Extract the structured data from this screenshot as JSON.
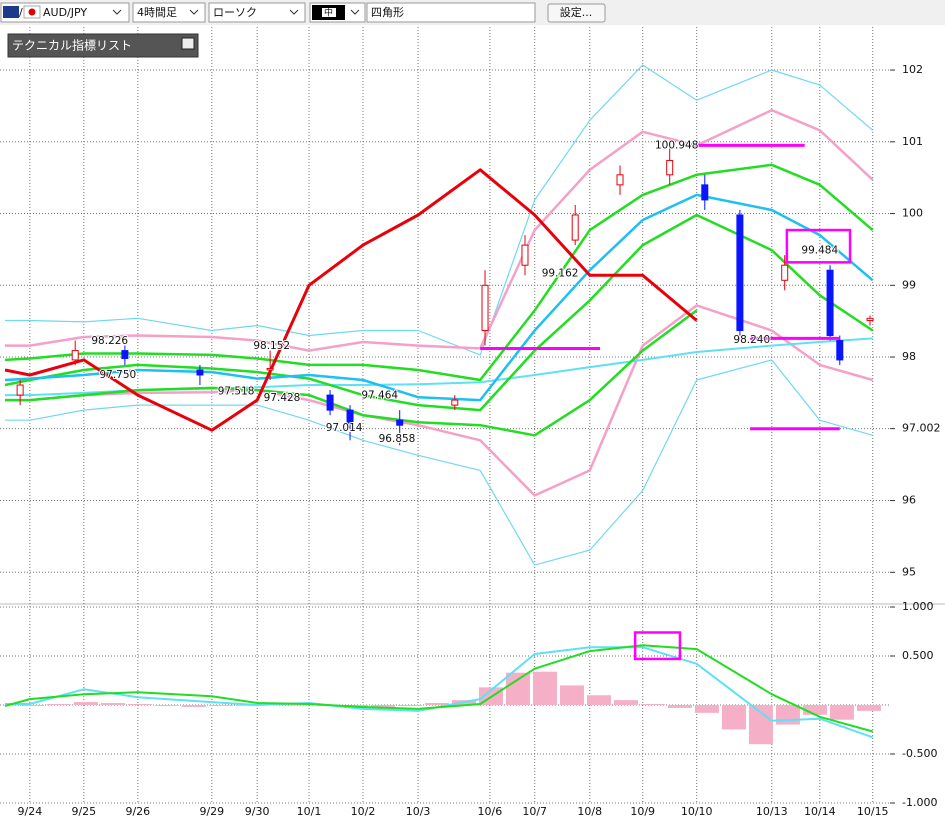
{
  "toolbar": {
    "pair": "AUD/JPY",
    "timeframe": "4時間足",
    "chart_style": "ローソク",
    "line_width": "中",
    "drawing_tool": "四角形",
    "settings": "設定..."
  },
  "indicator_panel": {
    "title": "テクニカル指標リスト"
  },
  "chart_data": [
    {
      "type": "candlestick",
      "xlim": [
        0,
        16.39
      ],
      "xticks": [
        {
          "value": 0.46,
          "label": "9/24"
        },
        {
          "value": 1.46,
          "label": "9/25"
        },
        {
          "value": 2.46,
          "label": "9/26"
        },
        {
          "value": 3.83,
          "label": "9/29"
        },
        {
          "value": 4.67,
          "label": "9/30"
        },
        {
          "value": 5.63,
          "label": "10/1"
        },
        {
          "value": 6.63,
          "label": "10/2"
        },
        {
          "value": 7.65,
          "label": "10/3"
        },
        {
          "value": 8.98,
          "label": "10/6"
        },
        {
          "value": 9.81,
          "label": "10/7"
        },
        {
          "value": 10.83,
          "label": "10/8"
        },
        {
          "value": 11.81,
          "label": "10/9"
        },
        {
          "value": 12.81,
          "label": "10/10"
        },
        {
          "value": 14.2,
          "label": "10/13"
        },
        {
          "value": 15.09,
          "label": "10/14"
        },
        {
          "value": 16.07,
          "label": "10/15"
        }
      ],
      "ylim": [
        94.6,
        102.6
      ],
      "yticks": [
        95,
        96,
        97.002,
        98,
        99,
        100,
        101,
        102
      ],
      "grid": true,
      "up_color": "#e8000b",
      "down_color": "#0a14ff",
      "candles": {
        "x": [
          0.28,
          1.3,
          2.22,
          3.61,
          4.91,
          6.02,
          6.39,
          7.31,
          8.33,
          8.89,
          9.63,
          10.56,
          11.39,
          12.31,
          12.96,
          13.61,
          14.44,
          15.28,
          15.46,
          16.02
        ],
        "open": [
          97.47,
          97.96,
          98.09,
          97.82,
          97.82,
          97.47,
          97.26,
          97.12,
          97.33,
          98.37,
          99.28,
          99.63,
          100.4,
          100.54,
          100.4,
          99.98,
          99.07,
          99.21,
          98.23,
          98.51
        ],
        "high": [
          97.68,
          98.23,
          98.16,
          97.89,
          98.09,
          97.54,
          97.33,
          97.26,
          97.47,
          99.21,
          99.7,
          100.12,
          100.67,
          101.02,
          100.54,
          100.05,
          99.42,
          99.28,
          98.3,
          98.58
        ],
        "low": [
          97.33,
          97.89,
          97.89,
          97.61,
          97.68,
          97.19,
          96.84,
          96.77,
          97.26,
          98.16,
          99.14,
          99.56,
          100.26,
          100.4,
          100.05,
          98.3,
          98.93,
          98.23,
          97.89,
          98.44
        ],
        "close": [
          97.61,
          98.09,
          97.98,
          97.75,
          97.84,
          97.26,
          97.05,
          97.05,
          97.4,
          99.0,
          99.56,
          99.98,
          100.54,
          100.74,
          100.19,
          98.37,
          99.28,
          98.3,
          97.96,
          98.54
        ]
      },
      "x": [
        0,
        0.46,
        1.46,
        2.46,
        3.83,
        4.67,
        5.63,
        6.63,
        7.65,
        8.8,
        9.81,
        10.83,
        11.81,
        12.81,
        14.2,
        15.09,
        16.07
      ],
      "series": [
        {
          "color": "#70d8f0",
          "width": 1.2,
          "values": [
            98.51,
            98.51,
            98.49,
            98.54,
            98.37,
            98.44,
            98.3,
            98.37,
            98.37,
            98.03,
            100.19,
            101.3,
            102.07,
            101.58,
            102.0,
            101.79,
            101.16
          ]
        },
        {
          "color": "#70d8f0",
          "width": 1.2,
          "values": [
            97.12,
            97.12,
            97.26,
            97.33,
            97.33,
            97.33,
            97.12,
            96.84,
            96.63,
            96.42,
            95.1,
            95.31,
            96.14,
            97.68,
            97.96,
            97.12,
            96.91
          ]
        },
        {
          "color": "#f5a0c8",
          "width": 2.5,
          "values": [
            98.16,
            98.16,
            98.28,
            98.3,
            98.28,
            98.23,
            98.09,
            98.21,
            98.16,
            98.12,
            99.77,
            100.61,
            101.14,
            100.95,
            101.44,
            101.16,
            100.47
          ]
        },
        {
          "color": "#f5a0c8",
          "width": 2.5,
          "values": [
            97.4,
            97.4,
            97.47,
            97.5,
            97.51,
            97.54,
            97.4,
            97.19,
            97.05,
            96.84,
            96.07,
            96.42,
            98.16,
            98.72,
            98.37,
            97.89,
            97.68
          ]
        },
        {
          "color": "#5ee0f5",
          "width": 2,
          "values": [
            97.47,
            97.47,
            97.5,
            97.54,
            97.56,
            97.58,
            97.61,
            97.61,
            97.62,
            97.65,
            97.75,
            97.86,
            97.96,
            98.07,
            98.16,
            98.21,
            98.26
          ]
        },
        {
          "color": "#22dd22",
          "width": 2.5,
          "values": [
            97.96,
            97.98,
            98.05,
            98.05,
            98.03,
            97.98,
            97.89,
            97.89,
            97.82,
            97.68,
            98.65,
            99.77,
            100.26,
            100.54,
            100.68,
            100.4,
            99.77
          ]
        },
        {
          "color": "#22dd22",
          "width": 2.5,
          "values": [
            97.61,
            97.68,
            97.82,
            97.89,
            97.84,
            97.79,
            97.7,
            97.47,
            97.33,
            97.26,
            98.09,
            98.79,
            99.56,
            99.98,
            99.49,
            98.86,
            98.37
          ]
        },
        {
          "color": "#22dd22",
          "width": 2.5,
          "values": [
            97.4,
            97.4,
            97.47,
            97.54,
            97.57,
            97.54,
            97.47,
            97.19,
            97.09,
            97.05,
            96.91,
            97.4,
            98.09,
            98.65,
            null,
            null,
            null
          ]
        },
        {
          "color": "#1ec0f0",
          "width": 2.5,
          "values": [
            97.68,
            97.7,
            97.75,
            97.82,
            97.79,
            97.7,
            97.75,
            97.68,
            97.44,
            97.4,
            98.37,
            99.21,
            99.91,
            100.26,
            100.05,
            99.7,
            99.07
          ]
        },
        {
          "color": "#e8000b",
          "width": 3,
          "values": [
            97.82,
            97.75,
            97.96,
            97.47,
            96.98,
            97.4,
            99.0,
            99.56,
            99.98,
            100.61,
            99.98,
            99.14,
            99.14,
            98.51,
            null,
            null,
            null
          ]
        }
      ],
      "annotations": [
        {
          "x": 1.94,
          "value": 98.226,
          "label": "98.226"
        },
        {
          "x": 2.09,
          "value": 97.75,
          "label": "97.750"
        },
        {
          "x": 4.28,
          "value": 97.518,
          "label": "97.518"
        },
        {
          "x": 4.94,
          "value": 98.152,
          "label": "98.152"
        },
        {
          "x": 5.13,
          "value": 97.428,
          "label": "97.428"
        },
        {
          "x": 6.94,
          "value": 97.464,
          "label": "97.464"
        },
        {
          "x": 6.28,
          "value": 97.014,
          "label": "97.014"
        },
        {
          "x": 7.26,
          "value": 96.858,
          "label": "96.858"
        },
        {
          "x": 12.44,
          "value": 100.948,
          "label": "100.948"
        },
        {
          "x": 10.28,
          "value": 99.162,
          "label": "99.162"
        },
        {
          "x": 13.83,
          "value": 98.24,
          "label": "98.240"
        },
        {
          "x": 15.09,
          "value": 99.484,
          "label": "99.484"
        }
      ],
      "drawing_color": "#ff00ff",
      "hlines": [
        {
          "value": 98.12,
          "x": [
            8.8,
            11.02
          ]
        },
        {
          "value": 100.95,
          "x": [
            12.5,
            14.81
          ]
        },
        {
          "value": 98.26,
          "x": [
            13.8,
            15.46
          ]
        },
        {
          "value": 97.0,
          "x": [
            13.8,
            15.46
          ]
        }
      ],
      "rectangles": [
        {
          "x": [
            14.48,
            15.65
          ],
          "y": [
            99.77,
            99.32
          ]
        }
      ]
    },
    {
      "type": "line",
      "xlim": [
        0,
        16.39
      ],
      "ylim": [
        -1,
        1
      ],
      "yticks": [
        {
          "value": 1,
          "label": "1.000"
        },
        {
          "value": 0.5,
          "label": "0.500"
        },
        {
          "value": -0.5,
          "label": "-0.500"
        },
        {
          "value": -1,
          "label": "-1.000"
        }
      ],
      "x": [
        0,
        0.46,
        1.46,
        2.46,
        3.83,
        4.67,
        5.63,
        6.63,
        7.65,
        8.8,
        9.81,
        10.83,
        11.81,
        12.81,
        14.2,
        15.09,
        16.07
      ],
      "series": [
        {
          "color": "#5ee0f5",
          "width": 2,
          "values": [
            0.01,
            0.01,
            0.16,
            0.08,
            0.03,
            0.0,
            0.02,
            -0.04,
            -0.06,
            0.06,
            0.52,
            0.59,
            0.59,
            0.42,
            -0.16,
            -0.14,
            -0.33
          ]
        },
        {
          "color": "#22dd22",
          "width": 2,
          "values": [
            -0.01,
            0.06,
            0.11,
            0.13,
            0.09,
            0.02,
            0.01,
            -0.02,
            -0.04,
            0.01,
            0.37,
            0.55,
            0.61,
            0.57,
            0.11,
            -0.12,
            -0.27
          ]
        }
      ],
      "histogram": {
        "color": "#f5b0c8",
        "x": [
          0.5,
          1.0,
          1.5,
          2.0,
          2.5,
          3.0,
          3.5,
          4.0,
          4.5,
          5.0,
          5.5,
          6.0,
          6.5,
          7.0,
          7.5,
          8.0,
          8.5,
          9.0,
          9.5,
          10.0,
          10.5,
          11.0,
          11.5,
          12.0,
          12.5,
          13.0,
          13.5,
          14.0,
          14.5,
          15.0,
          15.5,
          16.0
        ],
        "values": [
          -0.01,
          0.01,
          0.03,
          0.02,
          0.01,
          -0.01,
          -0.02,
          -0.01,
          0.0,
          0.01,
          0.01,
          -0.01,
          -0.03,
          -0.02,
          -0.01,
          0.02,
          0.05,
          0.18,
          0.33,
          0.34,
          0.2,
          0.1,
          0.05,
          0.01,
          -0.03,
          -0.08,
          -0.25,
          -0.4,
          -0.2,
          -0.1,
          -0.15,
          -0.06
        ]
      },
      "drawing_color": "#ff00ff",
      "rectangles": [
        {
          "x": [
            11.67,
            12.5
          ],
          "y": [
            0.74,
            0.47
          ]
        }
      ]
    }
  ]
}
